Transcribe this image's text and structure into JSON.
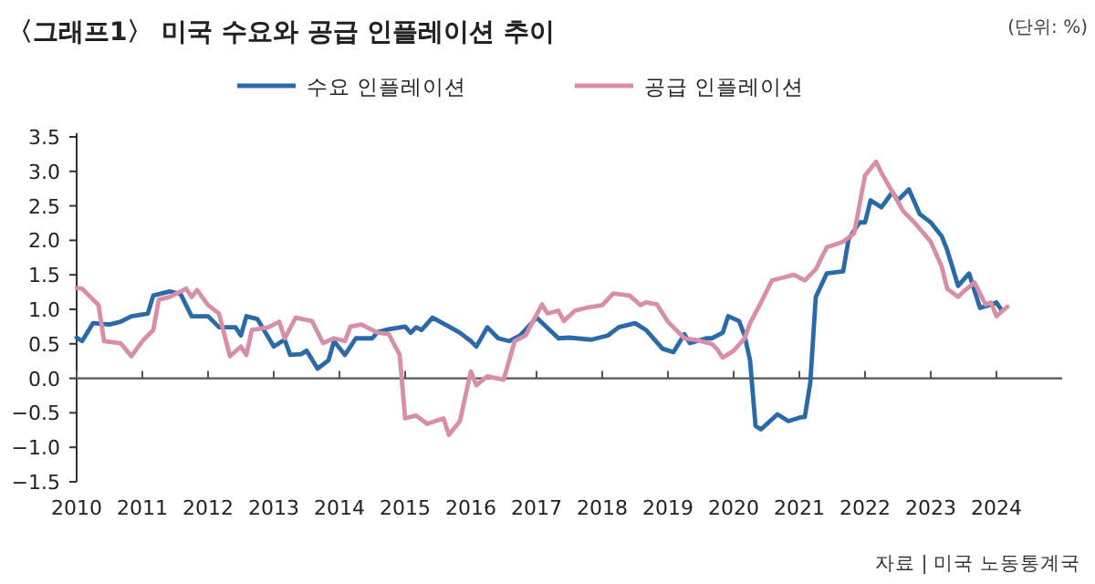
{
  "chart_data": {
    "type": "line",
    "title": "〈그래프1〉 미국 수요와 공급 인플레이션 추이",
    "annotations": [
      "(단위: %)",
      "자료 | 미국 노동통계국"
    ],
    "legend": "top",
    "xlim": [
      "2010",
      "2025"
    ],
    "ylim": [
      -1.5,
      3.5
    ],
    "xticks": [
      "2010",
      "2011",
      "2012",
      "2013",
      "2014",
      "2015",
      "2016",
      "2017",
      "2018",
      "2019",
      "2020",
      "2021",
      "2022",
      "2023",
      "2024"
    ],
    "yticks": [
      {
        "value": 3.5,
        "label": "3.5"
      },
      {
        "value": 3,
        "label": "3.0"
      },
      {
        "value": 2.5,
        "label": "2.5"
      },
      {
        "value": 2,
        "label": "2.0"
      },
      {
        "value": 1.5,
        "label": "1.5"
      },
      {
        "value": 1,
        "label": "1.0"
      },
      {
        "value": 0.5,
        "label": "0.5"
      },
      {
        "value": 0,
        "label": "0.0"
      },
      {
        "value": -0.5,
        "label": "−0.5"
      },
      {
        "value": -1,
        "label": "−1.0"
      },
      {
        "value": -1.5,
        "label": "−1.5"
      }
    ],
    "series": [
      {
        "name": "수요 인플레이션",
        "color": "#2a6aa8",
        "x": [
          "2010-01",
          "2010-02",
          "2010-04",
          "2010-07",
          "2010-09",
          "2010-11",
          "2011-02",
          "2011-03",
          "2011-06",
          "2011-08",
          "2011-10",
          "2012-01",
          "2012-03",
          "2012-06",
          "2012-07",
          "2012-08",
          "2012-10",
          "2013-01",
          "2013-03",
          "2013-04",
          "2013-06",
          "2013-07",
          "2013-09",
          "2013-11",
          "2013-12",
          "2014-02",
          "2014-04",
          "2014-07",
          "2014-08",
          "2014-10",
          "2015-01",
          "2015-02",
          "2015-03",
          "2015-04",
          "2015-06",
          "2015-09",
          "2015-11",
          "2016-01",
          "2016-02",
          "2016-04",
          "2016-06",
          "2016-08",
          "2016-10",
          "2017-01",
          "2017-05",
          "2017-07",
          "2017-11",
          "2018-02",
          "2018-04",
          "2018-07",
          "2018-09",
          "2018-12",
          "2019-02",
          "2019-04",
          "2019-05",
          "2019-08",
          "2019-09",
          "2019-11",
          "2019-12",
          "2020-02",
          "2020-03",
          "2020-04",
          "2020-05",
          "2020-06",
          "2020-09",
          "2020-11",
          "2021-01",
          "2021-02",
          "2021-03",
          "2021-04",
          "2021-06",
          "2021-09",
          "2021-10",
          "2021-12",
          "2022-01",
          "2022-02",
          "2022-04",
          "2022-06",
          "2022-07",
          "2022-09",
          "2022-11",
          "2023-01",
          "2023-03",
          "2023-04",
          "2023-06",
          "2023-08",
          "2023-10",
          "2023-12",
          "2024-01",
          "2024-02"
        ],
        "values": [
          0.59,
          0.54,
          0.8,
          0.78,
          0.82,
          0.9,
          0.94,
          1.2,
          1.26,
          1.22,
          0.9,
          0.9,
          0.74,
          0.74,
          0.62,
          0.9,
          0.86,
          0.46,
          0.56,
          0.34,
          0.35,
          0.4,
          0.14,
          0.26,
          0.54,
          0.34,
          0.58,
          0.58,
          0.67,
          0.71,
          0.75,
          0.66,
          0.74,
          0.7,
          0.88,
          0.75,
          0.66,
          0.54,
          0.46,
          0.74,
          0.58,
          0.54,
          0.62,
          0.88,
          0.58,
          0.59,
          0.56,
          0.62,
          0.74,
          0.8,
          0.7,
          0.43,
          0.38,
          0.64,
          0.51,
          0.58,
          0.58,
          0.66,
          0.9,
          0.83,
          0.62,
          0.26,
          -0.69,
          -0.74,
          -0.52,
          -0.62,
          -0.57,
          -0.56,
          -0.06,
          1.18,
          1.52,
          1.55,
          2.02,
          2.26,
          2.26,
          2.58,
          2.48,
          2.7,
          2.58,
          2.74,
          2.38,
          2.26,
          2.06,
          1.86,
          1.34,
          1.52,
          1.02,
          1.07,
          1.1,
          0.98
        ]
      },
      {
        "name": "공급 인플레이션",
        "color": "#d98ea8",
        "x": [
          "2010-01",
          "2010-02",
          "2010-04",
          "2010-05",
          "2010-06",
          "2010-09",
          "2010-11",
          "2011-01",
          "2011-03",
          "2011-04",
          "2011-06",
          "2011-09",
          "2011-10",
          "2011-11",
          "2012-01",
          "2012-03",
          "2012-05",
          "2012-07",
          "2012-08",
          "2012-09",
          "2012-12",
          "2013-02",
          "2013-03",
          "2013-05",
          "2013-08",
          "2013-10",
          "2013-12",
          "2014-02",
          "2014-03",
          "2014-05",
          "2014-08",
          "2014-10",
          "2014-12",
          "2015-01",
          "2015-03",
          "2015-05",
          "2015-08",
          "2015-09",
          "2015-11",
          "2016-01",
          "2016-02",
          "2016-04",
          "2016-07",
          "2016-09",
          "2016-11",
          "2017-02",
          "2017-03",
          "2017-05",
          "2017-06",
          "2017-08",
          "2017-10",
          "2018-01",
          "2018-03",
          "2018-06",
          "2018-08",
          "2018-09",
          "2018-11",
          "2019-01",
          "2019-04",
          "2019-06",
          "2019-09",
          "2019-10",
          "2019-11",
          "2020-01",
          "2020-03",
          "2020-04",
          "2020-06",
          "2020-08",
          "2020-10",
          "2020-12",
          "2021-02",
          "2021-04",
          "2021-06",
          "2021-09",
          "2021-11",
          "2022-01",
          "2022-03",
          "2022-04",
          "2022-06",
          "2022-08",
          "2022-10",
          "2023-01",
          "2023-03",
          "2023-04",
          "2023-06",
          "2023-07",
          "2023-09",
          "2023-11",
          "2023-12",
          "2024-01",
          "2024-03"
        ],
        "values": [
          1.31,
          1.3,
          1.14,
          1.06,
          0.54,
          0.51,
          0.32,
          0.54,
          0.7,
          1.14,
          1.18,
          1.3,
          1.18,
          1.28,
          1.06,
          0.94,
          0.32,
          0.46,
          0.34,
          0.7,
          0.74,
          0.82,
          0.58,
          0.88,
          0.83,
          0.51,
          0.58,
          0.54,
          0.75,
          0.78,
          0.66,
          0.64,
          0.34,
          -0.58,
          -0.54,
          -0.66,
          -0.58,
          -0.82,
          -0.62,
          0.1,
          -0.1,
          0.03,
          -0.02,
          0.54,
          0.62,
          1.07,
          0.94,
          0.98,
          0.83,
          0.98,
          1.02,
          1.06,
          1.23,
          1.2,
          1.06,
          1.1,
          1.07,
          0.82,
          0.58,
          0.56,
          0.5,
          0.42,
          0.3,
          0.4,
          0.58,
          0.8,
          1.1,
          1.42,
          1.46,
          1.5,
          1.42,
          1.58,
          1.9,
          1.98,
          2.1,
          2.94,
          3.14,
          2.98,
          2.7,
          2.42,
          2.26,
          1.98,
          1.62,
          1.3,
          1.18,
          1.26,
          1.39,
          1.07,
          1.1,
          0.9,
          1.04
        ]
      }
    ]
  }
}
